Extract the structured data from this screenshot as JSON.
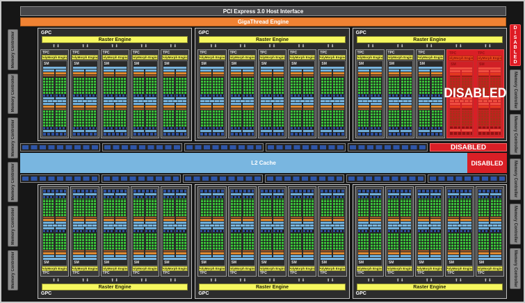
{
  "title_bars": {
    "pci": "PCI Express 3.0 Host Interface",
    "gigathread": "GigaThread Engine"
  },
  "labels": {
    "gpc": "GPC",
    "raster_engine": "Raster Engine",
    "tpc": "TPC",
    "polymorph_engine": "PolyMorph Engine",
    "sm": "SM",
    "l2_cache": "L2 Cache",
    "memory_controller": "Memory Controller",
    "disabled": "DISABLED"
  },
  "icons": {
    "tpc_arrows": "⬆⬇"
  },
  "colors": {
    "gigathread_orange": "#ef8233",
    "engine_yellow": "#f6f75f",
    "core_green": "#3ac23a",
    "sm_light_blue": "#79b6e0",
    "rop_blue": "#2e55a8",
    "warp_orange": "#e0892f",
    "disabled_red": "#d91f26",
    "l2_blue": "#79b6e0",
    "memory_controller_gray": "#8c8c8c",
    "host_interface_gray": "#47474a"
  },
  "structure": {
    "top_gpcs": [
      {
        "enabled_tpcs": 5,
        "disabled_tpcs": 0
      },
      {
        "enabled_tpcs": 5,
        "disabled_tpcs": 0
      },
      {
        "enabled_tpcs": 3,
        "disabled_tpcs": 2
      }
    ],
    "bottom_gpcs": [
      {
        "enabled_tpcs": 5,
        "disabled_tpcs": 0
      },
      {
        "enabled_tpcs": 5,
        "disabled_tpcs": 0
      },
      {
        "enabled_tpcs": 5,
        "disabled_tpcs": 0
      }
    ],
    "left_memory_controllers": 6,
    "right_memory_controllers": 5,
    "right_column_has_disabled_strip": true,
    "rop_top": {
      "enabled_groups": 5,
      "dashes_per_group": 8,
      "has_disabled_group": true
    },
    "rop_bottom": {
      "enabled_groups": 6,
      "dashes_per_group": 8
    },
    "core_grid": {
      "cols": 4,
      "rows": 8
    },
    "sections_per_sm": 2,
    "halves_per_section": 2
  }
}
